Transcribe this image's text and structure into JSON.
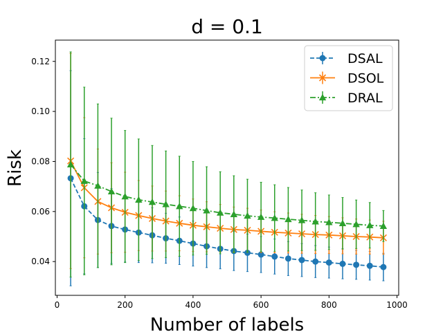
{
  "chart_data": {
    "type": "line",
    "title": "d = 0.1",
    "xlabel": "Number of labels",
    "ylabel": "Risk",
    "xlim": [
      -5,
      1005
    ],
    "ylim": [
      0.0265,
      0.1285
    ],
    "xticks": [
      0,
      200,
      400,
      600,
      800,
      1000
    ],
    "xtick_labels": [
      "0",
      "200",
      "400",
      "600",
      "800",
      "1000"
    ],
    "yticks": [
      0.04,
      0.06,
      0.08,
      0.1,
      0.12
    ],
    "ytick_labels": [
      "0.04",
      "0.06",
      "0.08",
      "0.10",
      "0.12"
    ],
    "grid": false,
    "legend_position": "top-right",
    "x": [
      40,
      80,
      120,
      160,
      200,
      240,
      280,
      320,
      360,
      400,
      440,
      480,
      520,
      560,
      600,
      640,
      680,
      720,
      760,
      800,
      840,
      880,
      920,
      960
    ],
    "series": [
      {
        "name": "DSAL",
        "color": "#1f77b4",
        "marker": "circle",
        "linestyle": "dashed",
        "values": [
          0.0733,
          0.0621,
          0.0566,
          0.0542,
          0.0528,
          0.0516,
          0.0505,
          0.0493,
          0.0483,
          0.0472,
          0.0461,
          0.0451,
          0.0442,
          0.0435,
          0.0428,
          0.042,
          0.0412,
          0.0406,
          0.04,
          0.0396,
          0.0391,
          0.0387,
          0.0383,
          0.0378
        ],
        "errors": [
          0.043,
          0.027,
          0.019,
          0.015,
          0.013,
          0.012,
          0.011,
          0.01,
          0.0095,
          0.009,
          0.0085,
          0.008,
          0.0078,
          0.0075,
          0.0072,
          0.007,
          0.0068,
          0.0066,
          0.0064,
          0.0062,
          0.006,
          0.0058,
          0.0057,
          0.0055
        ]
      },
      {
        "name": "DSOL",
        "color": "#ff7f0e",
        "marker": "x",
        "linestyle": "solid",
        "values": [
          0.0802,
          0.0695,
          0.064,
          0.0615,
          0.0597,
          0.0584,
          0.0572,
          0.0562,
          0.0553,
          0.0545,
          0.0539,
          0.0533,
          0.0528,
          0.0525,
          0.0521,
          0.0517,
          0.0514,
          0.0511,
          0.0508,
          0.0506,
          0.0503,
          0.05,
          0.0498,
          0.0495
        ],
        "errors": [
          0.043,
          0.028,
          0.021,
          0.018,
          0.016,
          0.014,
          0.013,
          0.012,
          0.011,
          0.0105,
          0.01,
          0.0095,
          0.009,
          0.0088,
          0.0085,
          0.0082,
          0.008,
          0.0078,
          0.0076,
          0.0074,
          0.0072,
          0.007,
          0.0068,
          0.0066
        ]
      },
      {
        "name": "DRAL",
        "color": "#2ca02c",
        "marker": "triangle",
        "linestyle": "dashdot",
        "values": [
          0.0788,
          0.0722,
          0.0703,
          0.068,
          0.066,
          0.0647,
          0.0638,
          0.0629,
          0.0621,
          0.0613,
          0.0604,
          0.0595,
          0.0589,
          0.0583,
          0.0578,
          0.0574,
          0.0569,
          0.0565,
          0.056,
          0.0557,
          0.0553,
          0.0549,
          0.0545,
          0.0542
        ],
        "errors": [
          0.045,
          0.0375,
          0.0327,
          0.0293,
          0.0264,
          0.0243,
          0.0226,
          0.0213,
          0.02,
          0.0187,
          0.0175,
          0.0164,
          0.0154,
          0.0146,
          0.0139,
          0.0133,
          0.0127,
          0.0121,
          0.0115,
          0.0109,
          0.0103,
          0.0097,
          0.0091,
          0.0062
        ]
      }
    ]
  }
}
